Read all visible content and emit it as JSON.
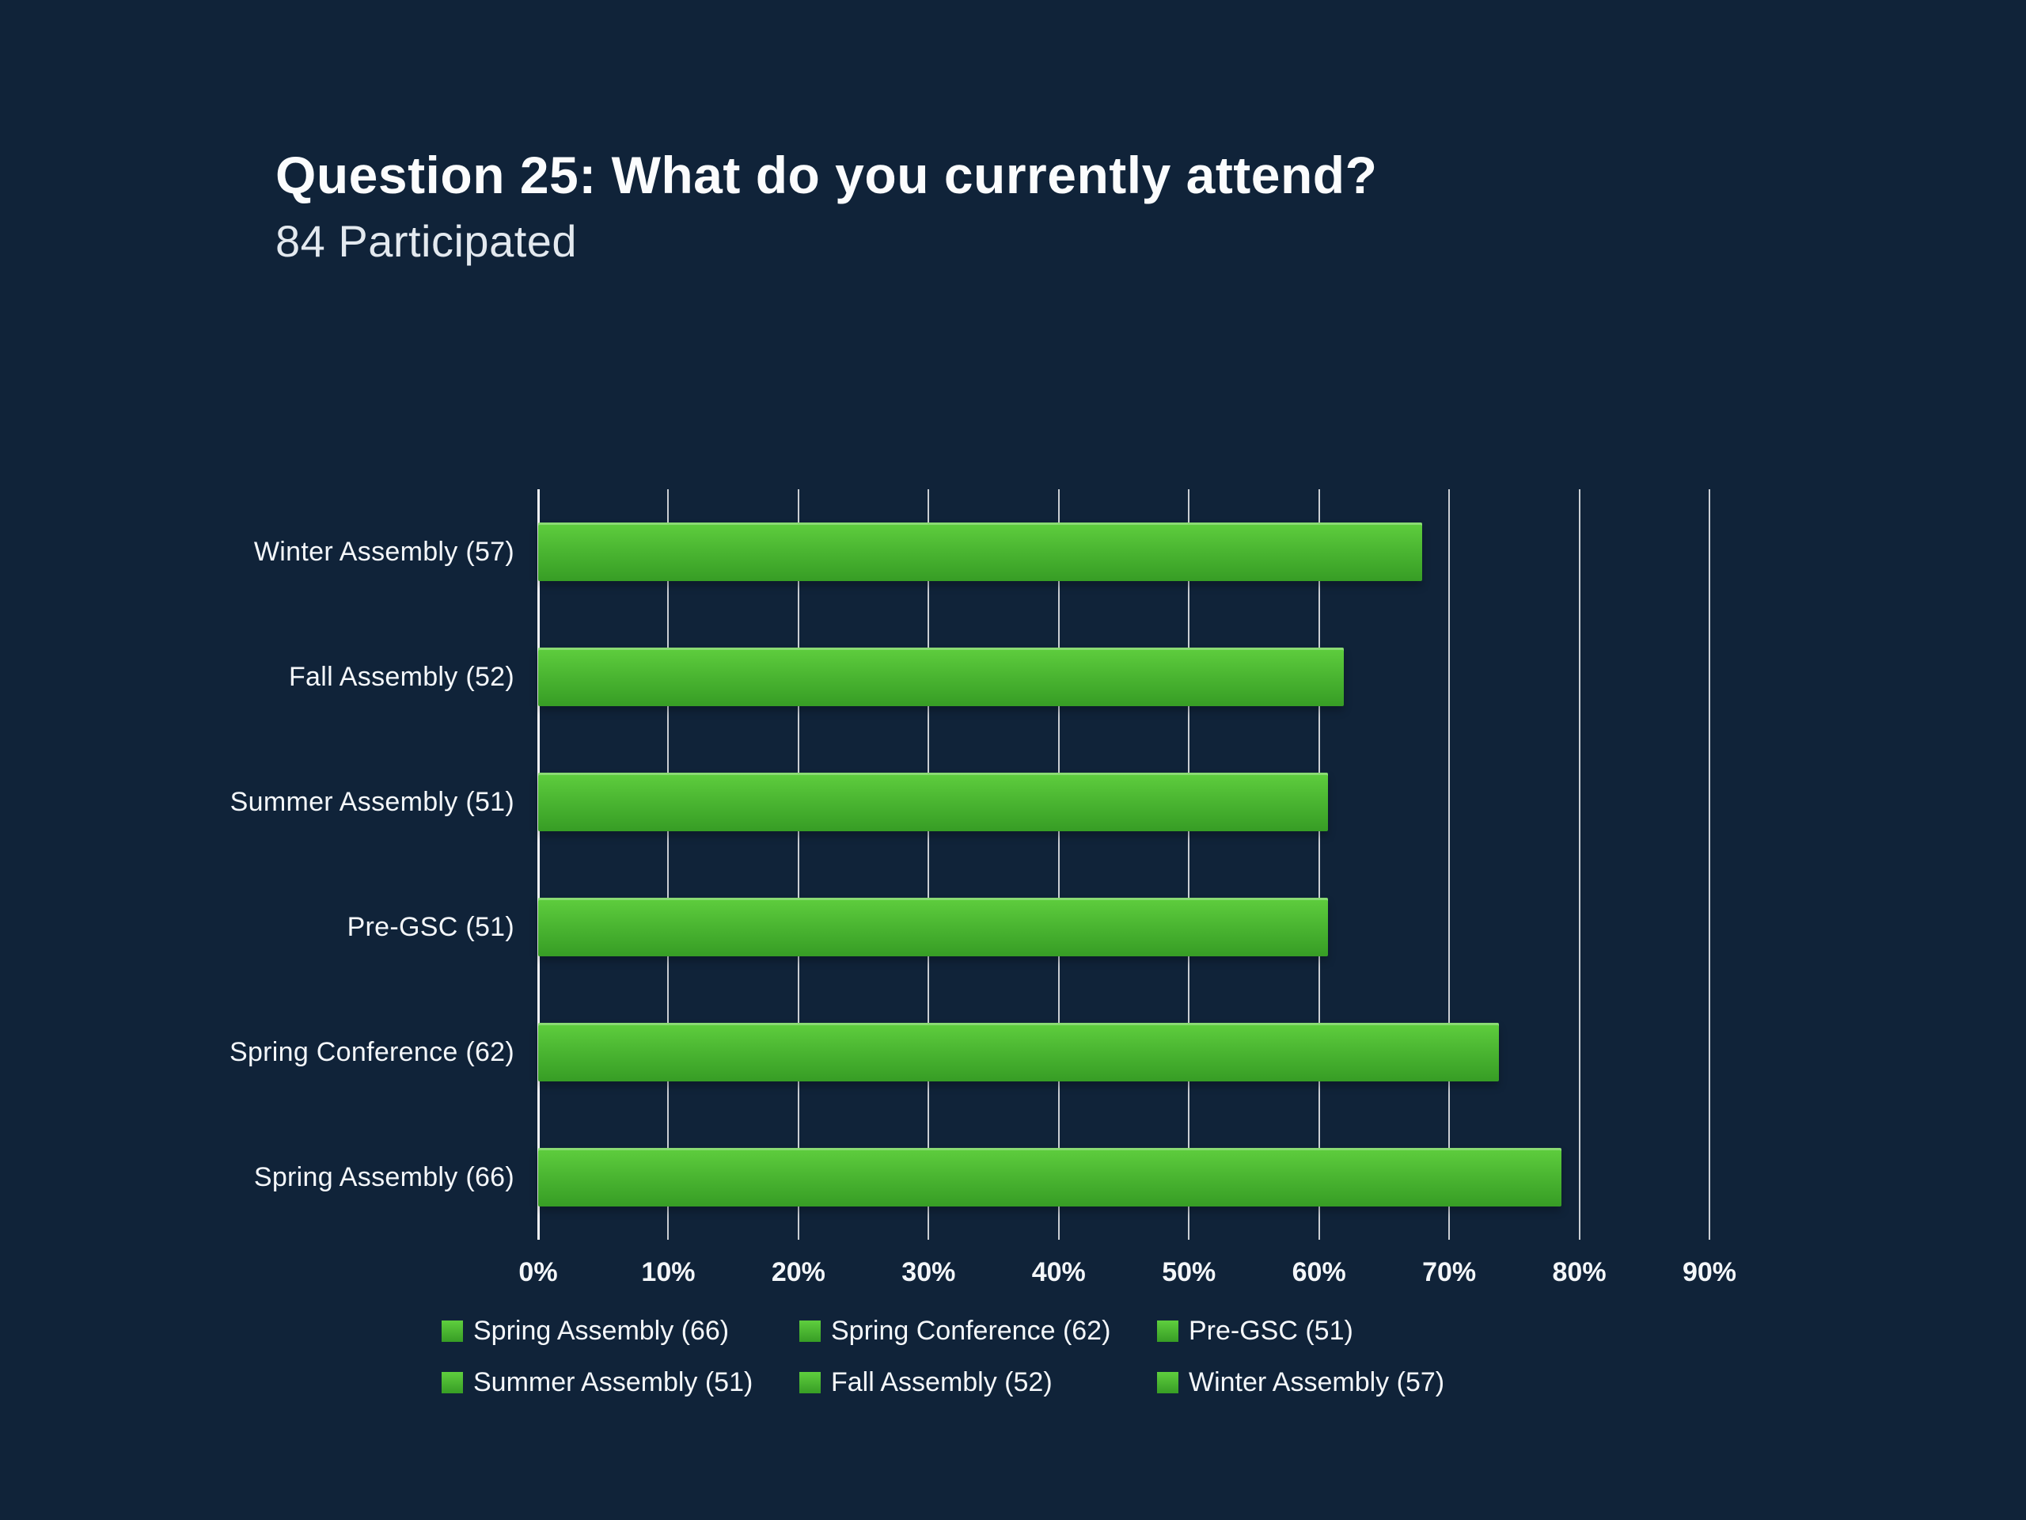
{
  "header": {
    "title": "Question 25: What do you currently attend?",
    "subtitle": "84 Participated"
  },
  "chart_data": {
    "type": "bar",
    "orientation": "horizontal",
    "title": "Question 25: What do you currently attend?",
    "subtitle": "84 Participated",
    "total_participants": 84,
    "categories": [
      "Winter Assembly (57)",
      "Fall Assembly (52)",
      "Summer Assembly (51)",
      "Pre-GSC (51)",
      "Spring Conference (62)",
      "Spring Assembly (66)"
    ],
    "counts": [
      57,
      52,
      51,
      51,
      62,
      66
    ],
    "values": [
      67.9,
      61.9,
      60.7,
      60.7,
      73.8,
      78.6
    ],
    "value_unit": "%",
    "xlim": [
      0,
      90
    ],
    "xticks": [
      0,
      10,
      20,
      30,
      40,
      50,
      60,
      70,
      80,
      90
    ],
    "tick_labels": [
      "0%",
      "10%",
      "20%",
      "30%",
      "40%",
      "50%",
      "60%",
      "70%",
      "80%",
      "90%"
    ],
    "grid": "vertical",
    "legend_position": "bottom"
  },
  "legend": {
    "items": [
      "Spring Assembly (66)",
      "Spring Conference (62)",
      "Pre-GSC (51)",
      "Summer Assembly (51)",
      "Fall Assembly (52)",
      "Winter Assembly (57)"
    ]
  },
  "colors": {
    "background": "#102339",
    "bar_top": "#5fce3e",
    "bar_mid": "#4ab531",
    "bar_bottom": "#379d25",
    "text": "#f4f7fa",
    "gridline": "rgba(255,255,255,0.78)"
  }
}
